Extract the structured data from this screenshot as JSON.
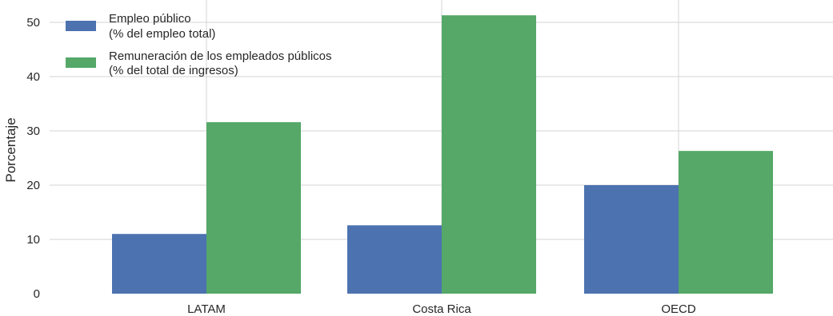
{
  "chart_data": {
    "type": "bar",
    "categories": [
      "LATAM",
      "Costa Rica",
      "OECD"
    ],
    "series": [
      {
        "name_line1": "Empleo público",
        "name_line2": "(% del empleo total)",
        "color": "#4c72b0",
        "values": [
          11,
          12.6,
          20
        ]
      },
      {
        "name_line1": "Remuneración de los empleados públicos",
        "name_line2": "(% del total de ingresos)",
        "color": "#55a868",
        "values": [
          31.6,
          51.3,
          26.3
        ]
      }
    ],
    "ylabel": "Porcentaje",
    "ylim": [
      0,
      53.5
    ],
    "yticks": [
      "0",
      "10",
      "20",
      "30",
      "40",
      "50"
    ],
    "grid": true,
    "legend_position": "top-left"
  }
}
